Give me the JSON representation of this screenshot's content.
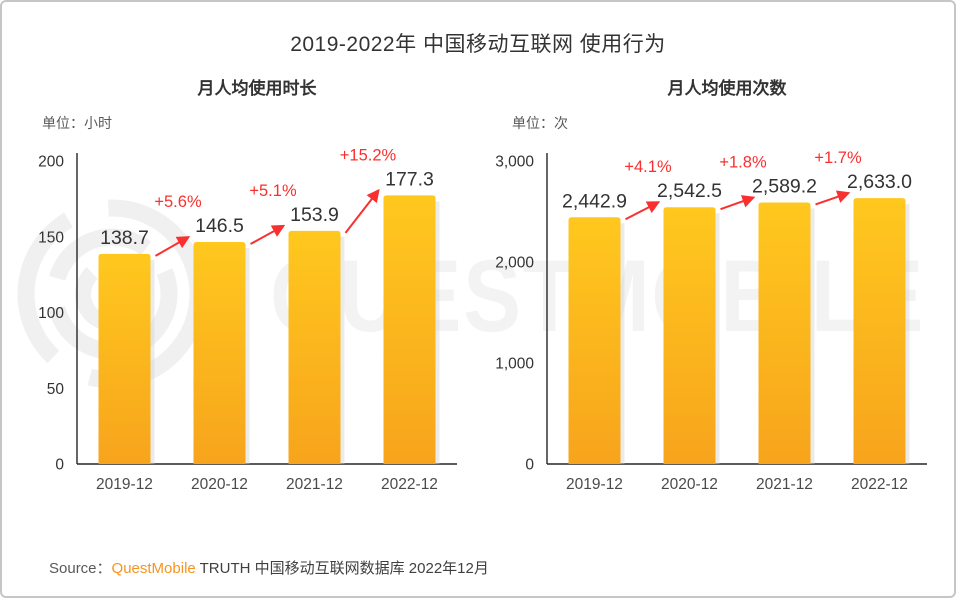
{
  "page": {
    "title": "2019-2022年 中国移动互联网 使用行为"
  },
  "watermark": {
    "text": "QUESTMOBILE"
  },
  "colors": {
    "bar_top": "#ffc81e",
    "bar_bottom": "#f7a41c",
    "bar_shadow": "#d2d2d2",
    "accent_red": "#fa2f2f",
    "brand_orange": "#f7941d",
    "axis": "#262626",
    "watermark_gray": "#f3f3f3"
  },
  "chart_data": [
    {
      "type": "bar",
      "title": "月人均使用时长",
      "unit_label": "单位：小时",
      "categories": [
        "2019-12",
        "2020-12",
        "2021-12",
        "2022-12"
      ],
      "values": [
        138.7,
        146.5,
        153.9,
        177.3
      ],
      "value_labels": [
        "138.7",
        "146.5",
        "153.9",
        "177.3"
      ],
      "growth_labels": [
        "+5.6%",
        "+5.1%",
        "+15.2%"
      ],
      "xlabel": "",
      "ylabel": "",
      "ylim": [
        0,
        200
      ],
      "yticks": [
        0,
        50,
        100,
        150,
        200
      ],
      "ytick_labels": [
        "0",
        "50",
        "100",
        "150",
        "200"
      ],
      "grid": false,
      "legend": "none"
    },
    {
      "type": "bar",
      "title": "月人均使用次数",
      "unit_label": "单位：次",
      "categories": [
        "2019-12",
        "2020-12",
        "2021-12",
        "2022-12"
      ],
      "values": [
        2442.9,
        2542.5,
        2589.2,
        2633.0
      ],
      "value_labels": [
        "2,442.9",
        "2,542.5",
        "2,589.2",
        "2,633.0"
      ],
      "growth_labels": [
        "+4.1%",
        "+1.8%",
        "+1.7%"
      ],
      "xlabel": "",
      "ylabel": "",
      "ylim": [
        0,
        3000
      ],
      "yticks": [
        0,
        1000,
        2000,
        3000
      ],
      "ytick_labels": [
        "0",
        "1,000",
        "2,000",
        "3,000"
      ],
      "grid": false,
      "legend": "none"
    }
  ],
  "source": {
    "prefix": "Source：",
    "brand": "QuestMobile",
    "suffix": " TRUTH 中国移动互联网数据库 2022年12月"
  }
}
